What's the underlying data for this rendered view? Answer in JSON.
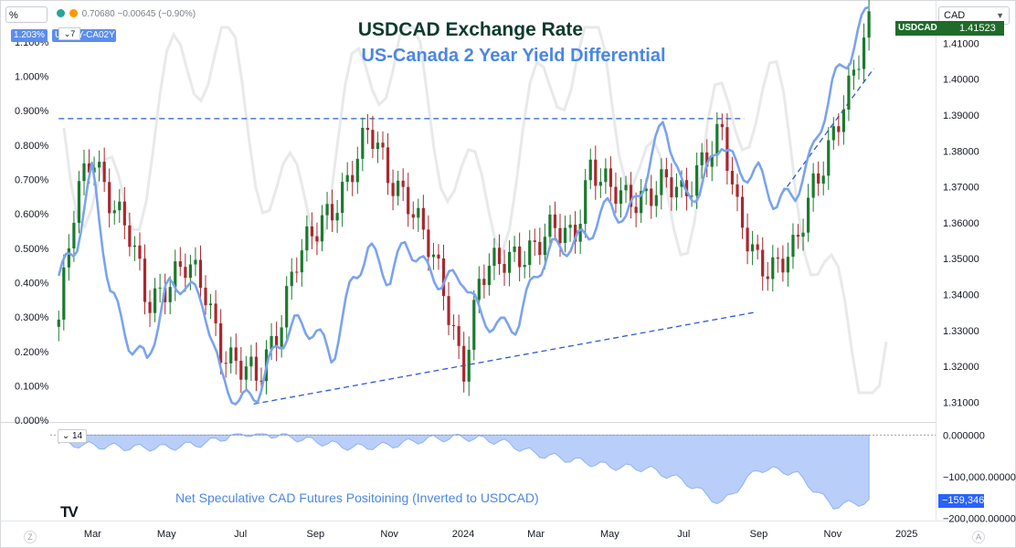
{
  "ui": {
    "top_input_value": "%",
    "legend_values": "0.70680  −0.00645 (−0.90%)",
    "legend_icon_1": "green-dot-icon",
    "legend_icon_2": "orange-d-icon",
    "left_badge": "1.203%",
    "symbol_badge": "US02Y-CA02Y",
    "mini_tag": "7",
    "symbol_select": "CAD",
    "price_tag_symbol": "USDCAD",
    "price_tag_value": "1.41523",
    "pane2_collapse": "14",
    "cot_last_value": "−159,346",
    "tv_logo": "TV",
    "corner_left": "Z",
    "corner_right": "A"
  },
  "colors": {
    "up_candle": "#1b7a2e",
    "down_candle": "#a8282e",
    "yield_diff_line": "#7aa3f0",
    "ghost_line": "#e8e9eb",
    "trendline": "#2b5ad6",
    "cot_fill": "#b9cff9",
    "title1": "#0c3b2e",
    "title2": "#4a86e8"
  },
  "chart_data": [
    {
      "type": "line",
      "title": "USDCAD Exchange Rate",
      "subtitle": "US-Canada 2 Year Yield Differential",
      "candlestick_series": {
        "name": "USDCAD",
        "x": [
          "2023-02-01",
          "2023-02-15",
          "2023-03-01",
          "2023-03-15",
          "2023-04-01",
          "2023-04-15",
          "2023-05-01",
          "2023-05-15",
          "2023-06-01",
          "2023-06-15",
          "2023-07-01",
          "2023-07-15",
          "2023-08-01",
          "2023-08-15",
          "2023-09-01",
          "2023-09-15",
          "2023-10-01",
          "2023-10-15",
          "2023-11-01",
          "2023-11-15",
          "2023-12-01",
          "2023-12-15",
          "2024-01-01",
          "2024-01-15",
          "2024-02-01",
          "2024-02-15",
          "2024-03-01",
          "2024-03-15",
          "2024-04-01",
          "2024-04-15",
          "2024-05-01",
          "2024-05-15",
          "2024-06-01",
          "2024-06-15",
          "2024-07-01",
          "2024-07-15",
          "2024-08-01",
          "2024-08-15",
          "2024-09-01",
          "2024-09-15",
          "2024-10-01",
          "2024-10-15",
          "2024-11-01",
          "2024-11-15",
          "2024-12-01"
        ],
        "close": [
          1.333,
          1.365,
          1.38,
          1.368,
          1.355,
          1.337,
          1.344,
          1.348,
          1.341,
          1.326,
          1.32,
          1.315,
          1.331,
          1.35,
          1.356,
          1.364,
          1.376,
          1.385,
          1.372,
          1.369,
          1.355,
          1.341,
          1.32,
          1.345,
          1.348,
          1.352,
          1.354,
          1.357,
          1.356,
          1.377,
          1.368,
          1.366,
          1.369,
          1.371,
          1.366,
          1.378,
          1.386,
          1.36,
          1.35,
          1.348,
          1.351,
          1.37,
          1.385,
          1.396,
          1.415
        ]
      },
      "series": [
        {
          "name": "US02Y-CA02Y",
          "x": [
            "2023-02-01",
            "2023-02-15",
            "2023-03-01",
            "2023-03-15",
            "2023-04-01",
            "2023-04-15",
            "2023-05-01",
            "2023-05-15",
            "2023-06-01",
            "2023-06-15",
            "2023-07-01",
            "2023-07-15",
            "2023-08-01",
            "2023-08-15",
            "2023-09-01",
            "2023-09-15",
            "2023-10-01",
            "2023-10-15",
            "2023-11-01",
            "2023-11-15",
            "2023-12-01",
            "2023-12-15",
            "2024-01-01",
            "2024-01-15",
            "2024-02-01",
            "2024-02-15",
            "2024-03-01",
            "2024-03-15",
            "2024-04-01",
            "2024-04-15",
            "2024-05-01",
            "2024-05-15",
            "2024-06-01",
            "2024-06-15",
            "2024-07-01",
            "2024-07-15",
            "2024-08-01",
            "2024-08-15",
            "2024-09-01",
            "2024-09-15",
            "2024-10-01",
            "2024-10-15",
            "2024-11-01",
            "2024-11-15",
            "2024-12-01"
          ],
          "y": [
            0.42,
            0.5,
            0.73,
            0.38,
            0.22,
            0.17,
            0.38,
            0.4,
            0.34,
            0.12,
            0.05,
            0.08,
            0.22,
            0.28,
            0.26,
            0.18,
            0.4,
            0.5,
            0.41,
            0.52,
            0.44,
            0.4,
            0.42,
            0.3,
            0.27,
            0.28,
            0.43,
            0.5,
            0.51,
            0.55,
            0.63,
            0.58,
            0.72,
            0.88,
            0.65,
            0.67,
            0.82,
            0.72,
            0.72,
            0.63,
            0.66,
            0.77,
            0.98,
            1.06,
            1.203
          ]
        }
      ],
      "trendlines": [
        {
          "name": "resistance",
          "x": [
            "2023-02-01",
            "2024-08-20"
          ],
          "y": [
            1.389,
            1.389
          ]
        },
        {
          "name": "support-1",
          "x": [
            "2023-07-12",
            "2024-08-28"
          ],
          "y": [
            1.3095,
            1.335
          ]
        },
        {
          "name": "support-2",
          "x": [
            "2024-09-20",
            "2024-12-05"
          ],
          "y": [
            1.368,
            1.403
          ]
        }
      ],
      "x_tick_labels": [
        "Mar",
        "May",
        "Jul",
        "Sep",
        "Nov",
        "2024",
        "Mar",
        "May",
        "Jul",
        "Sep",
        "Nov",
        "2025"
      ],
      "x_tick_dates": [
        "2023-03-01",
        "2023-05-01",
        "2023-07-01",
        "2023-09-01",
        "2023-11-01",
        "2024-01-01",
        "2024-03-01",
        "2024-05-01",
        "2024-07-01",
        "2024-09-01",
        "2024-11-01",
        "2025-01-01"
      ],
      "left_axis": {
        "ticks": [
          "0.000%",
          "0.100%",
          "0.200%",
          "0.300%",
          "0.400%",
          "0.500%",
          "0.600%",
          "0.700%",
          "0.800%",
          "0.900%",
          "1.000%",
          "1.100%"
        ],
        "values": [
          0,
          0.1,
          0.2,
          0.3,
          0.4,
          0.5,
          0.6,
          0.7,
          0.8,
          0.9,
          1.0,
          1.1
        ]
      },
      "right_axis": {
        "ticks": [
          "1.31000",
          "1.32000",
          "1.33000",
          "1.34000",
          "1.35000",
          "1.36000",
          "1.37000",
          "1.38000",
          "1.39000",
          "1.40000",
          "1.41000"
        ],
        "values": [
          1.31,
          1.32,
          1.33,
          1.34,
          1.35,
          1.36,
          1.37,
          1.38,
          1.39,
          1.4,
          1.41
        ]
      },
      "ylim": [
        1.3045,
        1.4195
      ],
      "ylim_left": [
        -0.005,
        1.195
      ],
      "grid": false
    },
    {
      "type": "area",
      "annotation": "Net Speculative CAD Futures Positoining (Inverted to USDCAD)",
      "series": [
        {
          "name": "CAD net speculative futures",
          "x": [
            "2023-02-01",
            "2023-03-01",
            "2023-04-01",
            "2023-05-01",
            "2023-06-01",
            "2023-07-01",
            "2023-08-01",
            "2023-09-01",
            "2023-10-01",
            "2023-11-01",
            "2023-12-01",
            "2024-01-01",
            "2024-02-01",
            "2024-03-01",
            "2024-04-01",
            "2024-05-01",
            "2024-06-01",
            "2024-07-01",
            "2024-08-01",
            "2024-09-01",
            "2024-10-01",
            "2024-11-01",
            "2024-12-01"
          ],
          "y": [
            -20000,
            -25000,
            -30000,
            -30000,
            -20000,
            5000,
            0,
            -15000,
            -30000,
            -25000,
            -10000,
            -5000,
            -15000,
            -45000,
            -60000,
            -75000,
            -80000,
            -110000,
            -165000,
            -80000,
            -90000,
            -170000,
            -159346
          ]
        }
      ],
      "y_tick_labels": [
        "0.000000",
        "−100,000.00000",
        "−200,000.00000"
      ],
      "y_tick_values": [
        0,
        -100000,
        -200000
      ],
      "ylim": [
        -205000,
        3000
      ]
    }
  ]
}
